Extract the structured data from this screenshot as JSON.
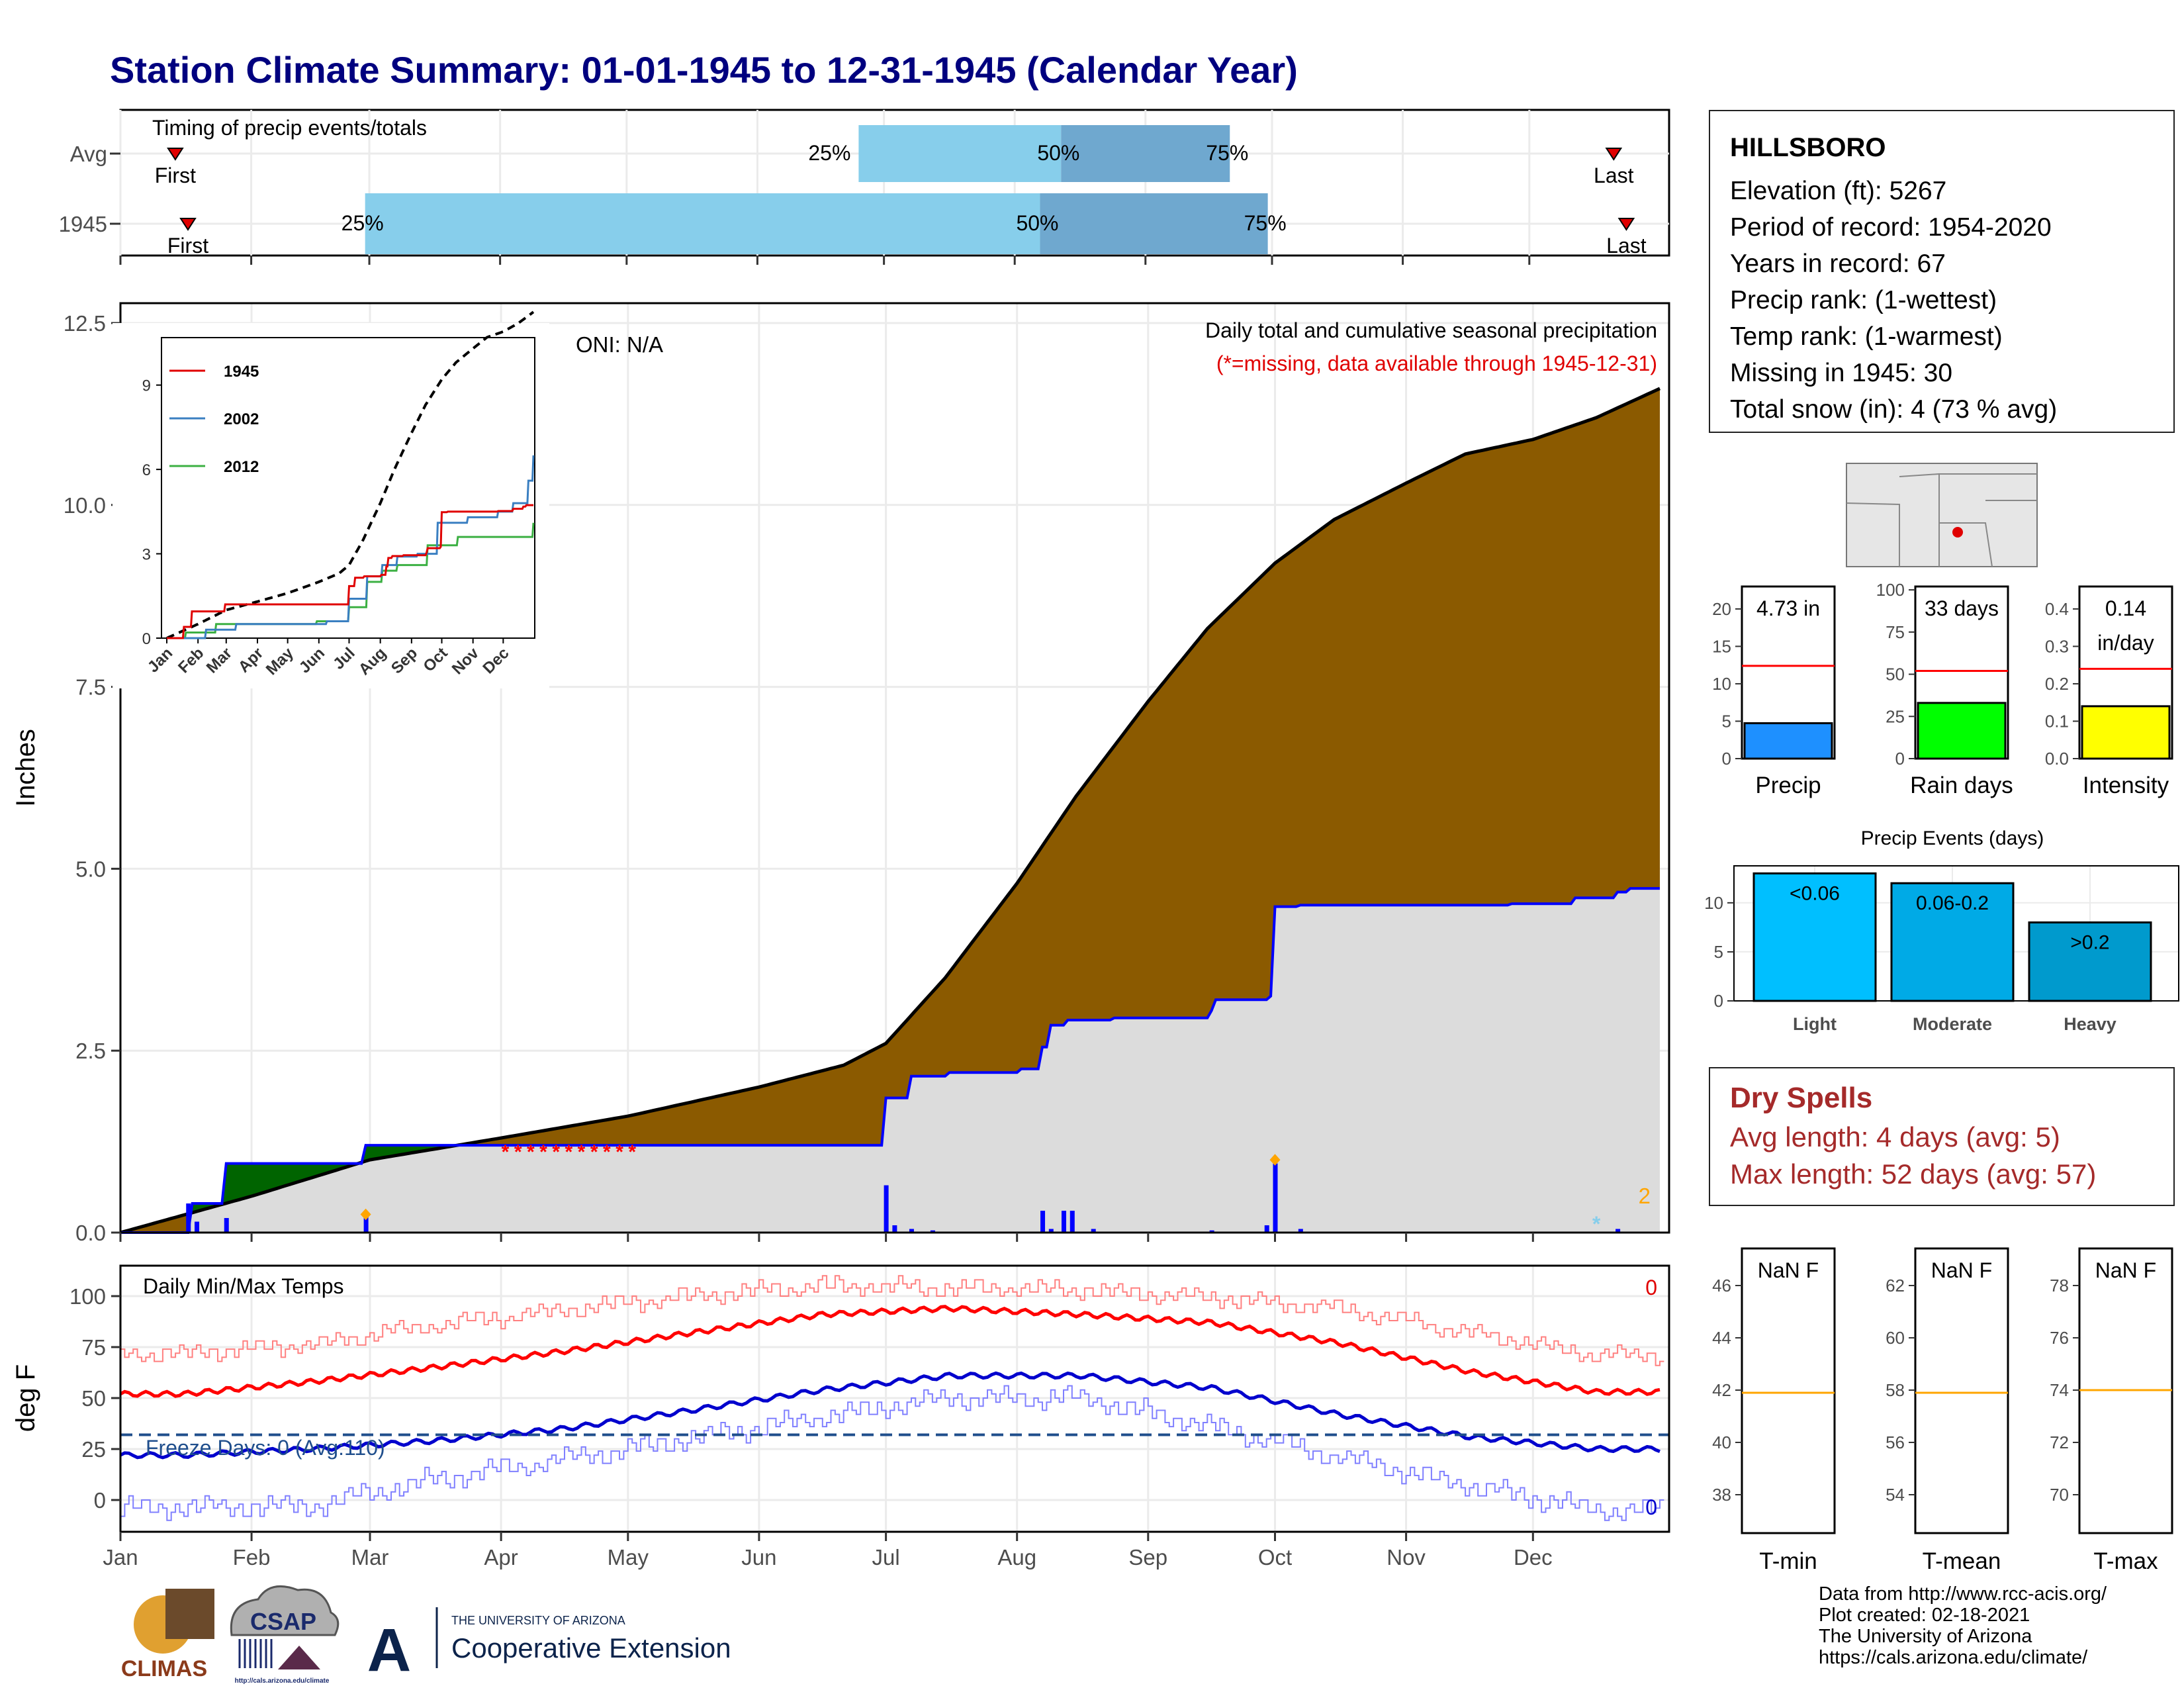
{
  "title": "Station Climate Summary: 01-01-1945 to 12-31-1945 (Calendar Year)",
  "colors": {
    "title": "#00007f",
    "precip_fill": "#8b5a00",
    "normal_fill": "#dcdcdc",
    "line_1945_cum": "#0000ff",
    "excess_green": "#006400",
    "timing_light": "#87ceeb",
    "timing_dark": "#6fa8cf",
    "bar_precip": "#1e90ff",
    "bar_raindays": "#00ff00",
    "bar_intensity": "#ffff00",
    "ev_light": "#00bfff",
    "ev_moderate": "#00aae6",
    "ev_heavy": "#009acd",
    "avg_line": "#ff0000",
    "dry_text": "#a52a2a",
    "tmax": "#ff0000",
    "tmin": "#0000cd",
    "freeze_line": "#1f4e8c",
    "gauge_line": "#ffa500"
  },
  "timing": {
    "label": "Timing of precip events/totals",
    "rows": [
      {
        "name": "Avg",
        "first": "First",
        "last": "Last",
        "p25": "25%",
        "p50": "50%",
        "p75": "75%",
        "first_doy": 14,
        "p25_doy": 176,
        "p50_doy": 224,
        "p75_doy": 264,
        "last_doy": 355
      },
      {
        "name": "1945",
        "first": "First",
        "last": "Last",
        "p25": "25%",
        "p50": "50%",
        "p75": "75%",
        "first_doy": 17,
        "p25_doy": 59,
        "p50_doy": 219,
        "p75_doy": 273,
        "last_doy": 358
      }
    ]
  },
  "main": {
    "ylabel": "Inches",
    "oni": "ONI: N/A",
    "caption1": "Daily total and cumulative seasonal precipitation",
    "caption2": "(*=missing, data available through 1945-12-31)",
    "corner_count": "2",
    "yticks": [
      "0.0",
      "2.5",
      "5.0",
      "7.5",
      "10.0",
      "12.5"
    ],
    "xticks": [
      "Jan",
      "Feb",
      "Mar",
      "Apr",
      "May",
      "Jun",
      "Jul",
      "Aug",
      "Sep",
      "Oct",
      "Nov",
      "Dec"
    ]
  },
  "inset": {
    "yticks": [
      "0",
      "3",
      "6",
      "9"
    ],
    "xticks": [
      "Jan",
      "Feb",
      "Mar",
      "Apr",
      "May",
      "Jun",
      "Jul",
      "Aug",
      "Sep",
      "Oct",
      "Nov",
      "Dec"
    ],
    "legend": [
      "1945",
      "2002",
      "2012"
    ]
  },
  "temps": {
    "label": "Daily Min/Max Temps",
    "ylabel": "deg F",
    "freeze_text": "Freeze Days: 0 (Avg:110)",
    "count_top": "0",
    "count_bottom": "0",
    "yticks": [
      "0",
      "25",
      "50",
      "75",
      "100"
    ]
  },
  "station": {
    "name": "HILLSBORO",
    "elevation": "Elevation (ft): 5267",
    "period": "Period of record: 1954-2020",
    "years": "Years in record: 67",
    "precip_rank": "Precip rank:  (1-wettest)",
    "temp_rank": "Temp rank:  (1-warmest)",
    "missing": "Missing in 1945: 30",
    "snow": "Total snow (in): 4 (73 % avg)"
  },
  "gauges": [
    {
      "label": "Precip",
      "value_text": "4.73 in",
      "value": 4.73,
      "avg": 12.4,
      "max": 23,
      "ticks": [
        "0",
        "5",
        "10",
        "15",
        "20"
      ]
    },
    {
      "label": "Rain days",
      "value_text": "33 days",
      "value": 33,
      "avg": 52,
      "max": 102,
      "ticks": [
        "0",
        "25",
        "50",
        "75",
        "100"
      ]
    },
    {
      "label": "Intensity",
      "value_text": "0.14",
      "value_text2": "in/day",
      "value": 0.14,
      "avg": 0.24,
      "max": 0.46,
      "ticks": [
        "0.0",
        "0.1",
        "0.2",
        "0.3",
        "0.4"
      ]
    }
  ],
  "events": {
    "title": "Precip Events (days)",
    "ticks": [
      "0",
      "5",
      "10"
    ],
    "bars": [
      {
        "cat": "Light",
        "label": "<0.06",
        "value": 13
      },
      {
        "cat": "Moderate",
        "label": "0.06-0.2",
        "value": 12
      },
      {
        "cat": "Heavy",
        "label": ">0.2",
        "value": 8
      }
    ]
  },
  "dry": {
    "title": "Dry Spells",
    "avg": "Avg length: 4 days (avg: 5)",
    "max": "Max length: 52 days (avg: 57)"
  },
  "temp_gauges": [
    {
      "label": "T-min",
      "value_text": "NaN F",
      "ticks": [
        "38",
        "40",
        "42",
        "44",
        "46"
      ],
      "avg": 41.9
    },
    {
      "label": "T-mean",
      "value_text": "NaN F",
      "ticks": [
        "54",
        "56",
        "58",
        "60",
        "62"
      ],
      "avg": 57.9
    },
    {
      "label": "T-max",
      "value_text": "NaN F",
      "ticks": [
        "70",
        "72",
        "74",
        "76",
        "78"
      ],
      "avg": 74.0
    }
  ],
  "credits": [
    "Data from http://www.rcc-acis.org/",
    "Plot created: 02-18-2021",
    "The University of Arizona",
    "https://cals.arizona.edu/climate/"
  ],
  "logos": {
    "climas": "CLIMAS",
    "csap": "CSAP",
    "csap_url": "http://cals.arizona.edu/climate",
    "ua_top": "THE UNIVERSITY OF ARIZONA",
    "ua_bottom": "Cooperative Extension",
    "ua_letter": "A"
  },
  "chart_data": {
    "type": "area",
    "title": "Station Climate Summary: 01-01-1945 to 12-31-1945 (Calendar Year)",
    "ylabel": "Inches",
    "ylim": [
      0,
      12.8
    ],
    "x_unit": "day of year 1945",
    "series": [
      {
        "name": "cumulative average",
        "x": [
          1,
          32,
          60,
          91,
          121,
          152,
          172,
          182,
          196,
          213,
          227,
          244,
          258,
          274,
          288,
          305,
          319,
          335,
          350,
          365
        ],
        "values": [
          0,
          0.5,
          1.0,
          1.3,
          1.6,
          2.0,
          2.3,
          2.6,
          3.5,
          4.8,
          6.0,
          7.3,
          8.3,
          9.2,
          9.8,
          10.3,
          10.7,
          10.9,
          11.2,
          11.6
        ]
      },
      {
        "name": "1945 cumulative",
        "x": [
          1,
          14,
          18,
          26,
          58,
          59,
          121,
          181,
          182,
          188,
          197,
          214,
          219,
          221,
          225,
          236,
          259,
          260,
          273,
          274,
          280,
          330,
          345,
          355,
          358,
          365
        ],
        "values": [
          0,
          0.0,
          0.4,
          0.95,
          0.95,
          1.2,
          1.2,
          1.2,
          1.85,
          2.15,
          2.2,
          2.25,
          2.55,
          2.85,
          2.92,
          2.95,
          3.05,
          3.2,
          3.25,
          4.48,
          4.5,
          4.52,
          4.6,
          4.68,
          4.73,
          4.73
        ]
      },
      {
        "name": "daily precip",
        "x": [
          17,
          19,
          26,
          59,
          182,
          184,
          188,
          193,
          219,
          221,
          224,
          226,
          231,
          259,
          272,
          274,
          280,
          355
        ],
        "values": [
          0.4,
          0.15,
          0.2,
          0.25,
          0.65,
          0.1,
          0.05,
          0.03,
          0.3,
          0.05,
          0.3,
          0.3,
          0.05,
          0.03,
          0.1,
          0.95,
          0.05,
          0.05
        ]
      }
    ],
    "daily_temps": {
      "months": [
        "Jan",
        "Feb",
        "Mar",
        "Apr",
        "May",
        "Jun",
        "Jul",
        "Aug",
        "Sep",
        "Oct",
        "Nov",
        "Dec"
      ],
      "avg_max": [
        52,
        58,
        65,
        73,
        82,
        91,
        94,
        91,
        87,
        77,
        63,
        53
      ],
      "avg_min": [
        22,
        25,
        29,
        35,
        44,
        54,
        61,
        61,
        55,
        42,
        31,
        25
      ],
      "rec_max": [
        72,
        76,
        86,
        93,
        100,
        105,
        104,
        103,
        99,
        94,
        82,
        71
      ],
      "rec_min": [
        -4,
        -3,
        10,
        20,
        30,
        41,
        50,
        50,
        36,
        21,
        7,
        -5
      ],
      "freeze_line": 32
    }
  }
}
